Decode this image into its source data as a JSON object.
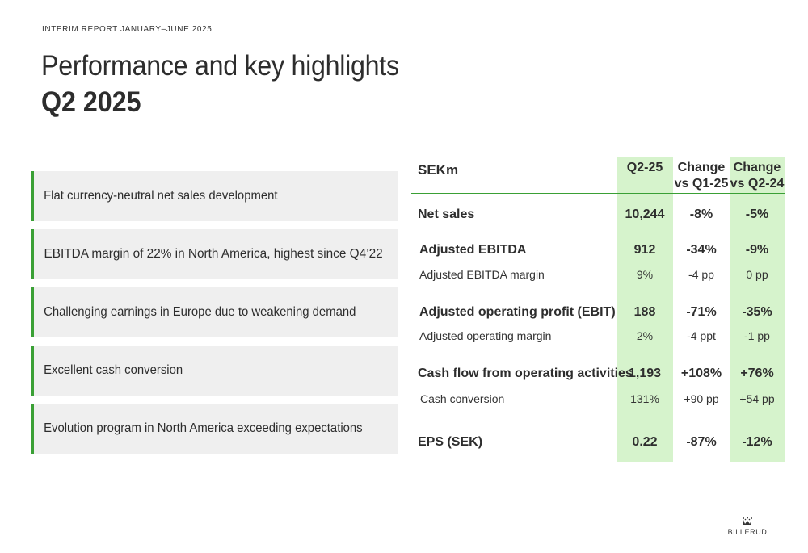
{
  "header": {
    "kicker": "INTERIM REPORT JANUARY–JUNE 2025",
    "title": "Performance and key highlights",
    "subtitle": "Q2 2025"
  },
  "highlights": [
    "Flat currency-neutral net sales development",
    "EBITDA margin of 22% in North America, highest since Q4’22",
    "Challenging earnings in Europe due to weakening demand",
    "Excellent cash conversion",
    "Evolution program in North America exceeding expectations"
  ],
  "table": {
    "unit_label": "SEKm",
    "columns": [
      "Q2-25",
      "Change vs Q1-25",
      "Change vs Q2-24"
    ],
    "column_lines": [
      [
        "Q2-25"
      ],
      [
        "Change",
        "vs Q1-25"
      ],
      [
        "Change",
        "vs Q2-24"
      ]
    ],
    "highlighted_columns": [
      "Q2-25",
      "Change vs Q2-24"
    ],
    "highlight_color": "#d6f3cc",
    "rows": [
      {
        "label": "Net sales",
        "values": [
          "10,244",
          "-8%",
          "-5%"
        ],
        "bold": true
      },
      {
        "label": "Adjusted EBITDA",
        "values": [
          "912",
          "-34%",
          "-9%"
        ],
        "bold": true
      },
      {
        "label": "Adjusted EBITDA margin",
        "values": [
          "9%",
          "-4 pp",
          "0 pp"
        ],
        "bold": false
      },
      {
        "label": "Adjusted operating profit (EBIT)",
        "values": [
          "188",
          "-71%",
          "-35%"
        ],
        "bold": true
      },
      {
        "label": "Adjusted operating margin",
        "values": [
          "2%",
          "-4 ppt",
          "-1 pp"
        ],
        "bold": false
      },
      {
        "label": "Cash flow from operating activities",
        "values": [
          "1,193",
          "+108%",
          "+76%"
        ],
        "bold": true
      },
      {
        "label": "Cash conversion",
        "values": [
          "131%",
          "+90 pp",
          "+54 pp"
        ],
        "bold": false
      },
      {
        "label": "EPS (SEK)",
        "values": [
          "0.22",
          "-87%",
          "-12%"
        ],
        "bold": true
      }
    ]
  },
  "brand": {
    "name": "BILLERUD",
    "icon": "crown-icon",
    "accent": "#3aa035"
  }
}
